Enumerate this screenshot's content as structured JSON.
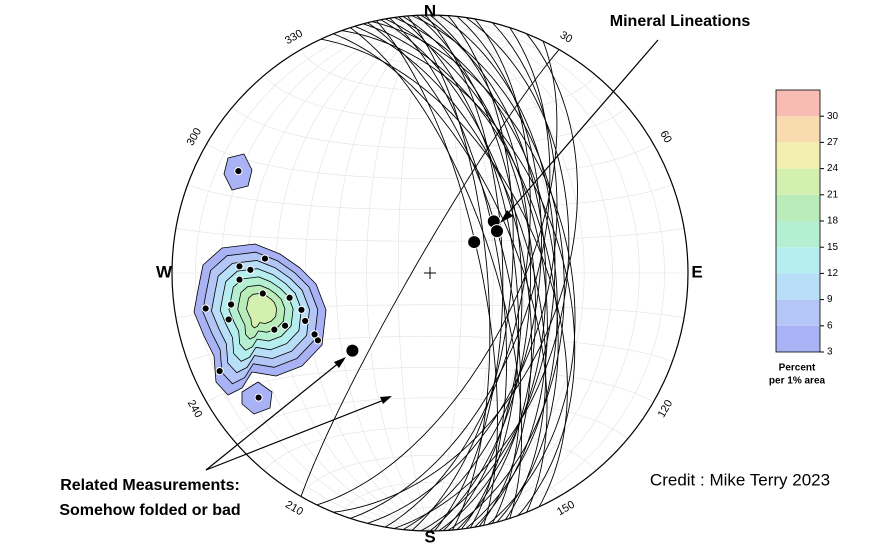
{
  "chart_data": {
    "type": "stereonet",
    "cardinals": {
      "north": "N",
      "east": "E",
      "south": "S",
      "west": "W"
    },
    "azimuths": [
      30,
      60,
      120,
      150,
      210,
      240,
      300,
      330
    ],
    "planes": [
      [
        335,
        55
      ],
      [
        338,
        62
      ],
      [
        340,
        48
      ],
      [
        342,
        70
      ],
      [
        343,
        58
      ],
      [
        345,
        52
      ],
      [
        346,
        66
      ],
      [
        347,
        45
      ],
      [
        348,
        74
      ],
      [
        349,
        60
      ],
      [
        350,
        54
      ],
      [
        351,
        68
      ],
      [
        352,
        50
      ],
      [
        353,
        63
      ],
      [
        354,
        57
      ],
      [
        355,
        72
      ],
      [
        356,
        47
      ],
      [
        357,
        61
      ],
      [
        358,
        53
      ],
      [
        359,
        67
      ],
      [
        0,
        58
      ],
      [
        2,
        50
      ],
      [
        4,
        64
      ],
      [
        6,
        55
      ],
      [
        8,
        46
      ],
      [
        10,
        60
      ],
      [
        14,
        52
      ],
      [
        18,
        57
      ],
      [
        22,
        48
      ],
      [
        26,
        62
      ],
      [
        210,
        85
      ]
    ],
    "lineations": [
      [
        55,
        73
      ],
      [
        51,
        64
      ],
      [
        58,
        65
      ]
    ],
    "related_point": [
      225,
      55
    ],
    "poles": [
      [
        298,
        17
      ],
      [
        261,
        23
      ],
      [
        257,
        21
      ],
      [
        263,
        35
      ],
      [
        250,
        40
      ],
      [
        254,
        47
      ],
      [
        250,
        36
      ],
      [
        261,
        13
      ],
      [
        245,
        11
      ],
      [
        234,
        19
      ],
      [
        239,
        48
      ],
      [
        275,
        36
      ],
      [
        268,
        27
      ],
      [
        272,
        27
      ],
      [
        260,
        44
      ],
      [
        249,
        47
      ],
      [
        242,
        48
      ],
      [
        271,
        31
      ]
    ],
    "annotations": {
      "lineations": "Mineral Lineations",
      "related_1": "Related Measurements:",
      "related_2": "Somehow folded or bad",
      "credit": "Credit : Mike Terry 2023"
    },
    "colorbar": {
      "range": [
        3,
        33
      ],
      "ticks": [
        3,
        6,
        9,
        12,
        15,
        18,
        21,
        24,
        27,
        30
      ],
      "colors": [
        "#a9b2f5",
        "#b3c6f6",
        "#b9def8",
        "#b6eef0",
        "#b5efd2",
        "#b9ecb9",
        "#d3f0b0",
        "#f1f0b0",
        "#f8dcb0",
        "#f8bcb4"
      ],
      "title_1": "Percent",
      "title_2": "per 1% area"
    }
  }
}
